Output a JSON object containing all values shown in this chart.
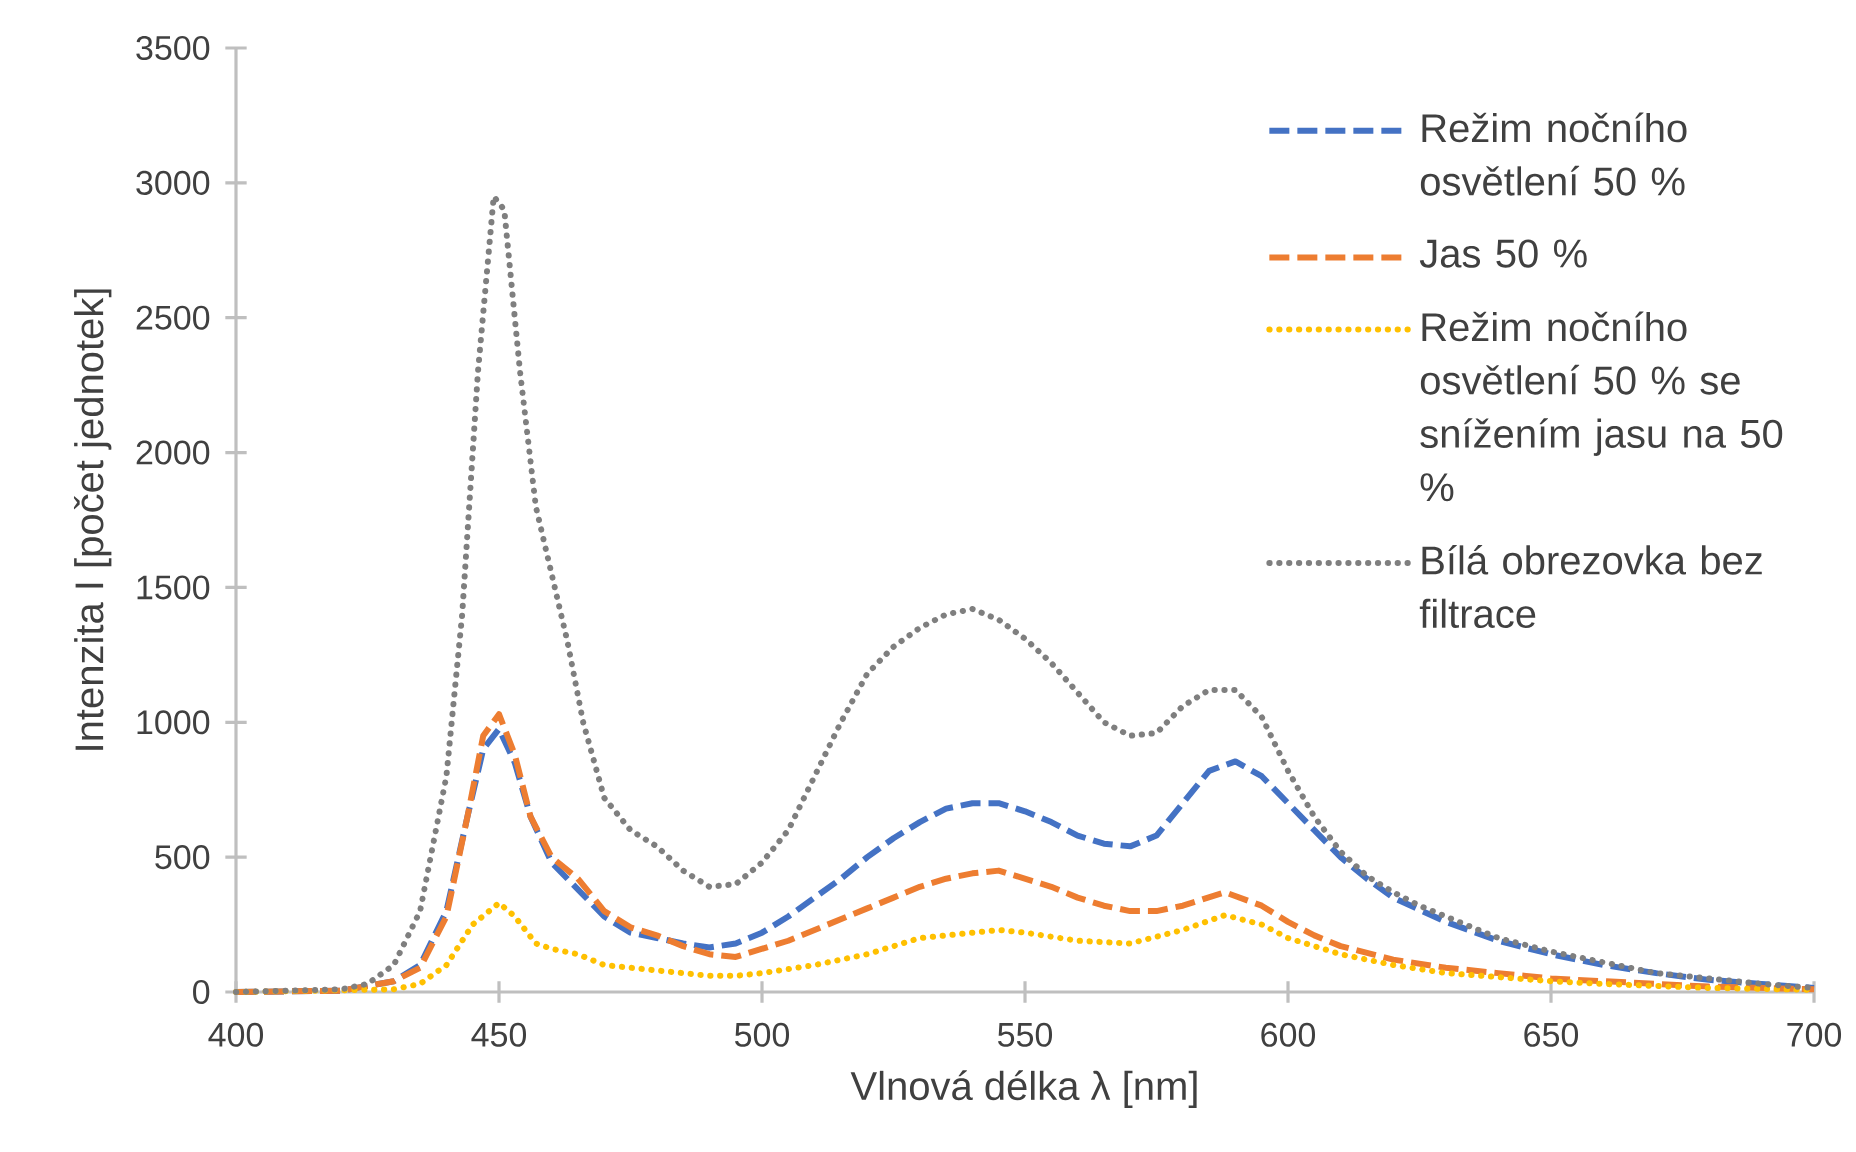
{
  "chart_data": {
    "type": "line",
    "xlabel": "Vlnová délka λ [nm]",
    "ylabel": "Intenzita I [počet jednotek]",
    "xlim": [
      400,
      700
    ],
    "xticks": [
      400,
      450,
      500,
      550,
      600,
      650,
      700
    ],
    "ylim": [
      0,
      3500
    ],
    "yticks": [
      0,
      500,
      1000,
      1500,
      2000,
      2500,
      3000,
      3500
    ],
    "grid": false,
    "legend": "top right",
    "marker": "none",
    "series": [
      {
        "name": "Režim nočního osvětlení 50 %",
        "color": "#4472c4",
        "line_style": "dashed",
        "x": [
          400,
          420,
          430,
          435,
          440,
          444,
          447,
          450,
          453,
          456,
          460,
          465,
          470,
          475,
          480,
          485,
          490,
          495,
          500,
          505,
          510,
          515,
          520,
          525,
          530,
          535,
          540,
          545,
          550,
          555,
          560,
          565,
          570,
          575,
          580,
          585,
          590,
          595,
          600,
          605,
          610,
          615,
          620,
          630,
          640,
          650,
          660,
          670,
          680,
          690,
          700
        ],
        "values": [
          0,
          5,
          40,
          100,
          300,
          650,
          900,
          975,
          850,
          650,
          480,
          380,
          280,
          220,
          200,
          180,
          165,
          180,
          220,
          280,
          350,
          420,
          500,
          570,
          630,
          680,
          700,
          700,
          670,
          630,
          580,
          550,
          540,
          580,
          700,
          820,
          855,
          800,
          700,
          600,
          500,
          420,
          350,
          260,
          190,
          140,
          100,
          70,
          45,
          30,
          15
        ]
      },
      {
        "name": "Jas 50 %",
        "color": "#ed7d31",
        "line_style": "dashed",
        "x": [
          400,
          420,
          430,
          435,
          440,
          444,
          447,
          450,
          453,
          456,
          460,
          465,
          470,
          475,
          480,
          485,
          490,
          495,
          500,
          505,
          510,
          515,
          520,
          525,
          530,
          535,
          540,
          545,
          550,
          555,
          560,
          565,
          570,
          575,
          580,
          588,
          595,
          600,
          605,
          610,
          620,
          630,
          640,
          650,
          660,
          680,
          700
        ],
        "values": [
          0,
          5,
          40,
          90,
          280,
          650,
          950,
          1030,
          880,
          650,
          500,
          420,
          300,
          240,
          210,
          170,
          140,
          130,
          160,
          190,
          230,
          270,
          310,
          350,
          390,
          420,
          440,
          450,
          420,
          390,
          350,
          320,
          300,
          300,
          320,
          370,
          320,
          260,
          210,
          170,
          120,
          90,
          70,
          50,
          40,
          20,
          10
        ]
      },
      {
        "name": "Režim nočního osvětlení 50 % se snížením jasu na 50 %",
        "color": "#ffc000",
        "line_style": "dotted",
        "x": [
          400,
          430,
          435,
          440,
          445,
          450,
          453,
          457,
          460,
          465,
          470,
          480,
          490,
          495,
          500,
          510,
          520,
          530,
          540,
          545,
          550,
          560,
          570,
          580,
          588,
          595,
          600,
          610,
          620,
          630,
          640,
          650,
          660,
          680,
          700
        ],
        "values": [
          0,
          10,
          30,
          100,
          250,
          330,
          280,
          180,
          160,
          140,
          100,
          80,
          60,
          60,
          70,
          100,
          140,
          200,
          220,
          230,
          220,
          190,
          180,
          230,
          285,
          250,
          200,
          140,
          100,
          70,
          55,
          40,
          30,
          15,
          8
        ]
      },
      {
        "name": "Bílá obrezovka bez filtrace",
        "color": "#7f7f7f",
        "line_style": "dotted",
        "x": [
          400,
          410,
          420,
          425,
          430,
          435,
          440,
          443,
          446,
          449,
          451,
          454,
          457,
          460,
          463,
          466,
          470,
          475,
          480,
          485,
          490,
          495,
          500,
          505,
          510,
          515,
          520,
          525,
          530,
          535,
          540,
          545,
          550,
          555,
          560,
          565,
          570,
          575,
          580,
          585,
          590,
          595,
          600,
          605,
          610,
          615,
          620,
          625,
          630,
          640,
          650,
          660,
          670,
          680,
          690,
          700
        ],
        "values": [
          0,
          5,
          10,
          30,
          100,
          300,
          800,
          1400,
          2300,
          2950,
          2900,
          2300,
          1800,
          1550,
          1300,
          1000,
          720,
          600,
          540,
          450,
          390,
          400,
          480,
          600,
          800,
          1000,
          1180,
          1280,
          1350,
          1400,
          1420,
          1380,
          1310,
          1220,
          1110,
          1000,
          950,
          960,
          1060,
          1120,
          1120,
          1020,
          820,
          650,
          520,
          430,
          370,
          320,
          280,
          200,
          150,
          110,
          70,
          50,
          30,
          15
        ]
      }
    ]
  }
}
